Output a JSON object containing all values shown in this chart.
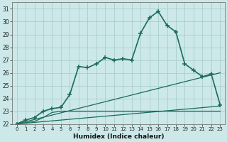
{
  "xlabel": "Humidex (Indice chaleur)",
  "bg_color": "#cce8e8",
  "grid_color": "#aacece",
  "line_color": "#1a6b5a",
  "xlim": [
    -0.5,
    23.5
  ],
  "ylim": [
    22,
    31.5
  ],
  "xticks": [
    0,
    1,
    2,
    3,
    4,
    5,
    6,
    7,
    8,
    9,
    10,
    11,
    12,
    13,
    14,
    15,
    16,
    17,
    18,
    19,
    20,
    21,
    22,
    23
  ],
  "yticks": [
    22,
    23,
    24,
    25,
    26,
    27,
    28,
    29,
    30,
    31
  ],
  "series": [
    {
      "x": [
        0,
        1,
        2,
        3,
        4,
        5,
        6,
        7,
        8,
        9,
        10,
        11,
        12,
        13,
        14,
        15,
        16,
        17,
        18,
        19,
        20,
        21,
        22,
        23
      ],
      "y": [
        22,
        22.3,
        22.5,
        23.0,
        23.2,
        23.3,
        24.3,
        26.5,
        26.4,
        26.7,
        27.2,
        27.0,
        27.1,
        27.0,
        29.1,
        30.3,
        30.8,
        29.7,
        29.2,
        26.7,
        26.2,
        25.7,
        25.9,
        23.5
      ],
      "marker": "+",
      "lw": 1.2,
      "ms": 4.5
    },
    {
      "x": [
        0,
        23
      ],
      "y": [
        22,
        23.4
      ],
      "marker": null,
      "lw": 0.9
    },
    {
      "x": [
        0,
        23
      ],
      "y": [
        22,
        26.0
      ],
      "marker": null,
      "lw": 0.9
    },
    {
      "x": [
        0,
        1,
        2,
        3,
        4,
        5,
        6,
        7,
        8,
        9,
        10,
        11,
        12,
        13,
        14,
        15,
        16,
        17,
        18,
        19,
        20,
        21,
        22,
        23
      ],
      "y": [
        22,
        22.1,
        22.2,
        22.5,
        22.9,
        23.0,
        23.0,
        23.0,
        23.0,
        23.0,
        23.0,
        23.0,
        23.0,
        23.0,
        23.0,
        23.0,
        23.0,
        23.0,
        23.0,
        23.0,
        23.0,
        23.0,
        23.0,
        23.0
      ],
      "marker": null,
      "lw": 0.9
    }
  ]
}
